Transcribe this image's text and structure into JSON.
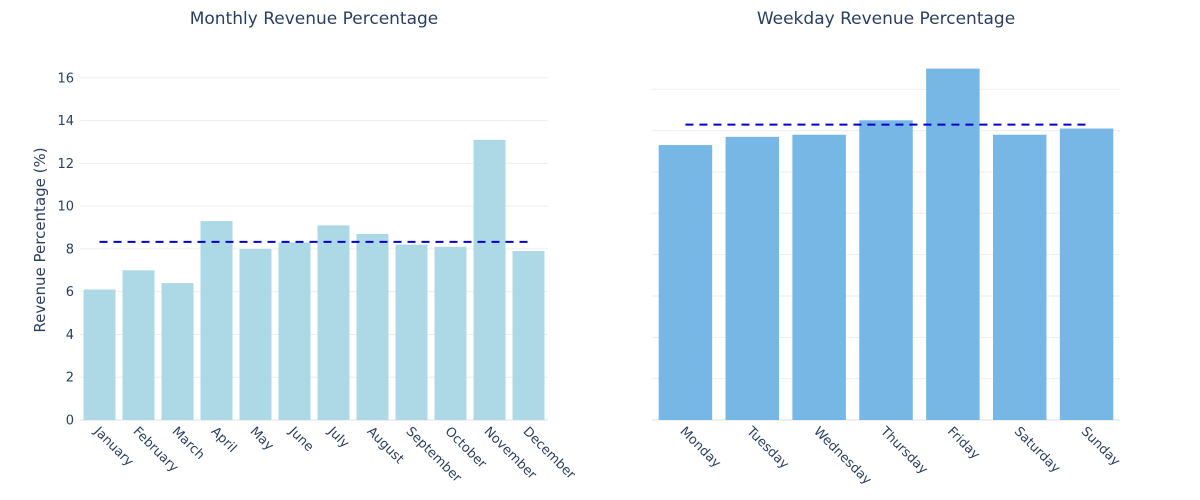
{
  "chart_data": [
    {
      "type": "bar",
      "title": "Monthly Revenue Percentage",
      "xlabel": "",
      "ylabel": "Revenue Percentage (%)",
      "categories": [
        "January",
        "February",
        "March",
        "April",
        "May",
        "June",
        "July",
        "August",
        "September",
        "October",
        "November",
        "December"
      ],
      "values": [
        6.1,
        7.0,
        6.4,
        9.3,
        8.0,
        8.3,
        9.1,
        8.7,
        8.2,
        8.1,
        13.1,
        7.9
      ],
      "ylim": [
        0,
        17.3
      ],
      "yticks": [
        0,
        2,
        4,
        6,
        8,
        10,
        12,
        14,
        16
      ],
      "show_ytick_labels": true,
      "mean_line": 8.33,
      "bar_color": "#add8e6",
      "mean_line_color": "#0000cc",
      "grid": true
    },
    {
      "type": "bar",
      "title": "Weekday Revenue Percentage",
      "xlabel": "",
      "ylabel": "",
      "categories": [
        "Monday",
        "Tuesday",
        "Wednesday",
        "Thursday",
        "Friday",
        "Saturday",
        "Sunday"
      ],
      "values": [
        13.3,
        13.7,
        13.8,
        14.5,
        17.0,
        13.8,
        14.1
      ],
      "ylim": [
        0,
        17.9
      ],
      "yticks": [
        0,
        2,
        4,
        6,
        8,
        10,
        12,
        14,
        16
      ],
      "show_ytick_labels": false,
      "mean_line": 14.29,
      "bar_color": "#76b7e5",
      "mean_line_color": "#0000cc",
      "grid": true
    }
  ]
}
